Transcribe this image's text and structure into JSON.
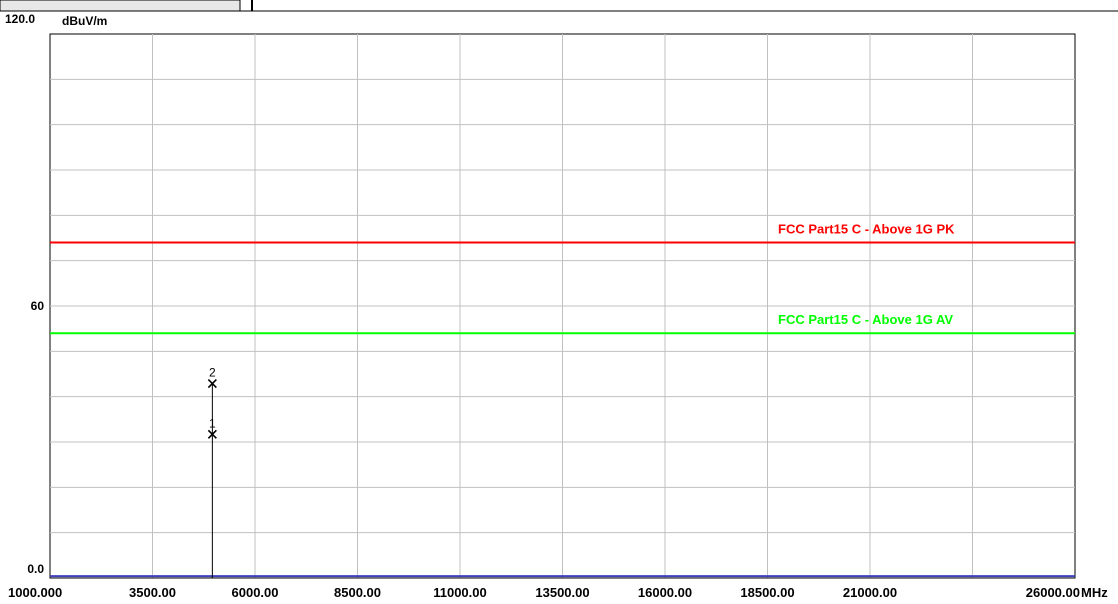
{
  "chart_data": {
    "type": "line",
    "ylabel": "dBuV/m",
    "xunit": "MHz",
    "xlim": [
      1000,
      26000
    ],
    "ylim": [
      0,
      120
    ],
    "y_tick_labels": [
      {
        "value": 120,
        "label": "120.0"
      },
      {
        "value": 60,
        "label": "60"
      },
      {
        "value": 0,
        "label": "0.0"
      }
    ],
    "x_tick_labels": [
      {
        "value": 1000,
        "label": "1000.000"
      },
      {
        "value": 3500,
        "label": "3500.00"
      },
      {
        "value": 6000,
        "label": "6000.00"
      },
      {
        "value": 8500,
        "label": "8500.00"
      },
      {
        "value": 11000,
        "label": "11000.00"
      },
      {
        "value": 13500,
        "label": "13500.00"
      },
      {
        "value": 16000,
        "label": "16000.00"
      },
      {
        "value": 18500,
        "label": "18500.00"
      },
      {
        "value": 21000,
        "label": "21000.00"
      },
      {
        "value": 26000,
        "label": "26000.00"
      }
    ],
    "grid": true,
    "grid_y_step": 10,
    "grid_x_step": 2500,
    "limit_lines": [
      {
        "label": "FCC Part15 C - Above 1G PK",
        "value": 74,
        "color": "#ff0000"
      },
      {
        "label": "FCC Part15 C - Above 1G AV",
        "value": 54,
        "color": "#00ff00"
      }
    ],
    "markers": [
      {
        "label": "1",
        "x": 4960,
        "y": 31.7
      },
      {
        "label": "2",
        "x": 4960,
        "y": 42.9
      }
    ],
    "noise_floor": {
      "value": 0.4,
      "color": "#4040c0"
    },
    "colors": {
      "grid": "#c0c0c0",
      "axis": "#000000",
      "marker": "#000000"
    }
  }
}
